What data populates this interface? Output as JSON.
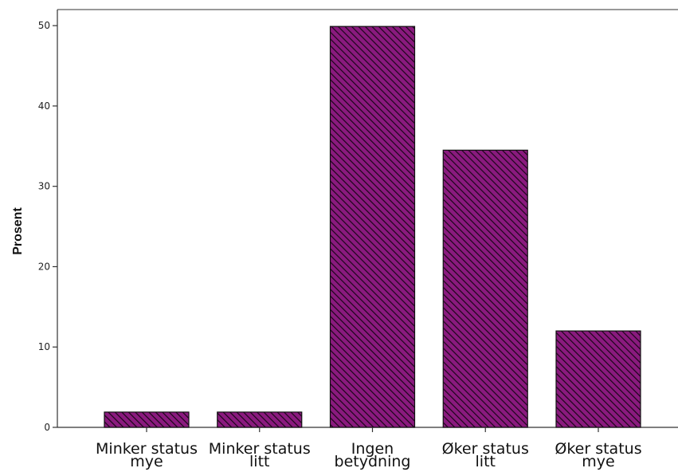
{
  "chart_data": {
    "type": "bar",
    "title": "",
    "xlabel": "",
    "ylabel": "Prosent",
    "ylim": [
      0,
      52
    ],
    "yticks": [
      0,
      10,
      20,
      30,
      40,
      50
    ],
    "categories": [
      [
        "Minker status",
        "mye"
      ],
      [
        "Minker status",
        "litt"
      ],
      [
        "Ingen",
        "betydning"
      ],
      [
        "Øker status",
        "litt"
      ],
      [
        "Øker status",
        "mye"
      ]
    ],
    "values": [
      1.9,
      1.9,
      49.9,
      34.5,
      12.0
    ],
    "grid": false,
    "bar_color": "#8a1a7e",
    "bar_pattern": "diagonal-hatch"
  }
}
